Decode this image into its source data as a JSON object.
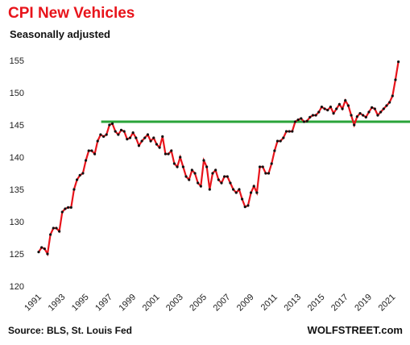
{
  "chart_data": {
    "type": "line",
    "title": "CPI New Vehicles",
    "subtitle": "Seasonally adjusted",
    "source": "Source: BLS, St. Louis Fed",
    "credit": "WOLFSTREET.com",
    "x": [
      1991,
      1991.25,
      1991.5,
      1991.75,
      1992,
      1992.25,
      1992.5,
      1992.75,
      1993,
      1993.25,
      1993.5,
      1993.75,
      1994,
      1994.25,
      1994.5,
      1994.75,
      1995,
      1995.25,
      1995.5,
      1995.75,
      1996,
      1996.25,
      1996.5,
      1996.75,
      1997,
      1997.25,
      1997.5,
      1997.75,
      1998,
      1998.25,
      1998.5,
      1998.75,
      1999,
      1999.25,
      1999.5,
      1999.75,
      2000,
      2000.25,
      2000.5,
      2000.75,
      2001,
      2001.25,
      2001.5,
      2001.75,
      2002,
      2002.25,
      2002.5,
      2002.75,
      2003,
      2003.25,
      2003.5,
      2003.75,
      2004,
      2004.25,
      2004.5,
      2004.75,
      2005,
      2005.25,
      2005.5,
      2005.75,
      2006,
      2006.25,
      2006.5,
      2006.75,
      2007,
      2007.25,
      2007.5,
      2007.75,
      2008,
      2008.25,
      2008.5,
      2008.75,
      2009,
      2009.25,
      2009.5,
      2009.75,
      2010,
      2010.25,
      2010.5,
      2010.75,
      2011,
      2011.25,
      2011.5,
      2011.75,
      2012,
      2012.25,
      2012.5,
      2012.75,
      2013,
      2013.25,
      2013.5,
      2013.75,
      2014,
      2014.25,
      2014.5,
      2014.75,
      2015,
      2015.25,
      2015.5,
      2015.75,
      2016,
      2016.25,
      2016.5,
      2016.75,
      2017,
      2017.25,
      2017.5,
      2017.75,
      2018,
      2018.25,
      2018.5,
      2018.75,
      2019,
      2019.25,
      2019.5,
      2019.75,
      2020,
      2020.25,
      2020.5,
      2020.75,
      2021,
      2021.25,
      2021.5
    ],
    "series": [
      {
        "color": "#e8141b",
        "marker_color": "#111111",
        "values": [
          125.3,
          126,
          125.8,
          125,
          128,
          129,
          129,
          128.5,
          131.5,
          132,
          132.2,
          132.2,
          135,
          136.5,
          137.2,
          137.5,
          139.5,
          141,
          141,
          140.5,
          142.5,
          143.5,
          143.2,
          143.5,
          145,
          145.2,
          144,
          143.5,
          144.2,
          144,
          142.8,
          143,
          143.8,
          143,
          141.8,
          142.5,
          143,
          143.5,
          142.5,
          143,
          142,
          141.5,
          143.2,
          140.5,
          140.5,
          141,
          139,
          138.5,
          140,
          138.5,
          137,
          136.5,
          138,
          137.5,
          136,
          135.5,
          139.5,
          138.5,
          135,
          137.5,
          138,
          136.5,
          136,
          137,
          137,
          136,
          135,
          134.5,
          135,
          133.5,
          132.3,
          132.5,
          134.5,
          135.5,
          134.5,
          138.5,
          138.5,
          137.5,
          137.5,
          139,
          141,
          142.5,
          142.5,
          143,
          144,
          144,
          144,
          145.5,
          145.8,
          146,
          145.5,
          145.6,
          146.2,
          146.5,
          146.5,
          147,
          147.8,
          147.5,
          147.3,
          147.8,
          146.8,
          147.5,
          148.2,
          147.5,
          148.8,
          148,
          146.5,
          145,
          146.3,
          146.8,
          146.5,
          146.2,
          147,
          147.7,
          147.5,
          146.5,
          147,
          147.5,
          148,
          148.5,
          149.5,
          152,
          154.8
        ]
      }
    ],
    "reference_line": {
      "value": 145.5,
      "from": 1996.3,
      "color": "#2aa43a"
    },
    "xlim": [
      1991,
      2021.8
    ],
    "ylim": [
      120,
      156.5
    ],
    "xticks": [
      1991,
      1993,
      1995,
      1997,
      1999,
      2001,
      2003,
      2005,
      2007,
      2009,
      2011,
      2013,
      2015,
      2017,
      2019,
      2021
    ],
    "yticks": [
      120,
      125,
      130,
      135,
      140,
      145,
      150,
      155
    ]
  }
}
